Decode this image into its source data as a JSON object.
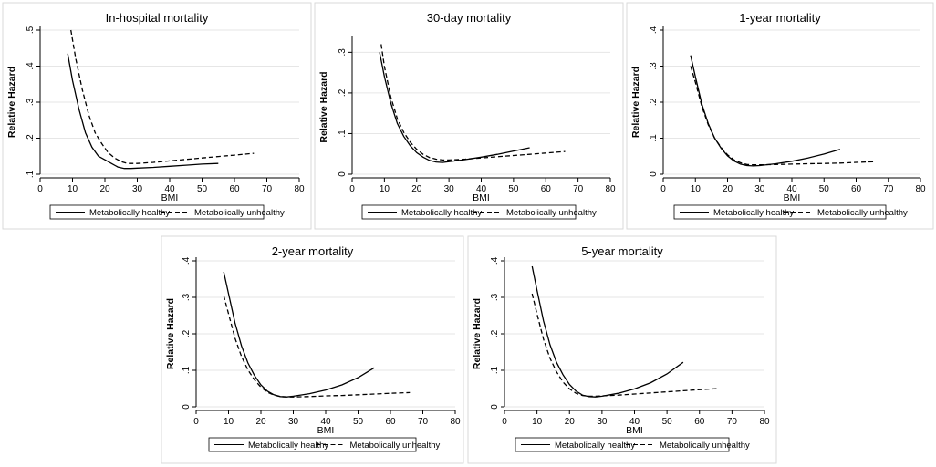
{
  "chart_data": [
    {
      "type": "line",
      "title": "In-hospital mortality",
      "xlabel": "BMI",
      "ylabel": "Relative Hazard",
      "xlim": [
        0,
        80
      ],
      "ylim": [
        0.1,
        0.5
      ],
      "xticks": [
        "0",
        "10",
        "20",
        "30",
        "40",
        "50",
        "60",
        "70",
        "80"
      ],
      "yticks": [
        ".1",
        ".2",
        ".3",
        ".4",
        ".5"
      ],
      "series": [
        {
          "name": "Metabolically healthy",
          "style": "solid",
          "x": [
            8.5,
            10,
            12,
            14,
            16,
            18,
            20,
            22,
            24,
            26,
            28,
            30,
            35,
            40,
            45,
            50,
            55
          ],
          "y": [
            0.435,
            0.36,
            0.28,
            0.215,
            0.175,
            0.15,
            0.14,
            0.13,
            0.12,
            0.116,
            0.116,
            0.117,
            0.119,
            0.122,
            0.125,
            0.128,
            0.13
          ]
        },
        {
          "name": "Metabolically unhealthy",
          "style": "dashed",
          "x": [
            9.5,
            11,
            13,
            15,
            17,
            19,
            21,
            23,
            25,
            27,
            30,
            35,
            40,
            45,
            50,
            55,
            60,
            66
          ],
          "y": [
            0.5,
            0.42,
            0.335,
            0.265,
            0.215,
            0.185,
            0.16,
            0.145,
            0.135,
            0.13,
            0.13,
            0.133,
            0.137,
            0.141,
            0.145,
            0.149,
            0.153,
            0.158
          ]
        }
      ]
    },
    {
      "type": "line",
      "title": "30-day mortality",
      "xlabel": "BMI",
      "ylabel": "Relative Hazard",
      "xlim": [
        0,
        80
      ],
      "ylim": [
        0,
        0.33
      ],
      "xticks": [
        "0",
        "10",
        "20",
        "30",
        "40",
        "50",
        "60",
        "70",
        "80"
      ],
      "yticks": [
        "0",
        ".1",
        ".2",
        ".3"
      ],
      "series": [
        {
          "name": "Metabolically healthy",
          "style": "solid",
          "x": [
            8.5,
            10,
            12,
            14,
            16,
            18,
            20,
            22,
            24,
            26,
            28,
            30,
            35,
            40,
            45,
            50,
            55
          ],
          "y": [
            0.3,
            0.24,
            0.175,
            0.125,
            0.093,
            0.07,
            0.053,
            0.042,
            0.034,
            0.03,
            0.029,
            0.031,
            0.036,
            0.042,
            0.049,
            0.057,
            0.065
          ]
        },
        {
          "name": "Metabolically unhealthy",
          "style": "dashed",
          "x": [
            9,
            10,
            12,
            14,
            16,
            18,
            20,
            22,
            24,
            26,
            28,
            30,
            35,
            40,
            45,
            50,
            55,
            60,
            66
          ],
          "y": [
            0.32,
            0.265,
            0.19,
            0.137,
            0.103,
            0.079,
            0.061,
            0.049,
            0.041,
            0.037,
            0.035,
            0.035,
            0.037,
            0.04,
            0.043,
            0.046,
            0.049,
            0.052,
            0.056
          ]
        }
      ]
    },
    {
      "type": "line",
      "title": "1-year mortality",
      "xlabel": "BMI",
      "ylabel": "Relative Hazard",
      "xlim": [
        0,
        80
      ],
      "ylim": [
        0,
        0.4
      ],
      "xticks": [
        "0",
        "10",
        "20",
        "30",
        "40",
        "50",
        "60",
        "70",
        "80"
      ],
      "yticks": [
        "0",
        ".1",
        ".2",
        ".3",
        ".4"
      ],
      "series": [
        {
          "name": "Metabolically healthy",
          "style": "solid",
          "x": [
            8.5,
            10,
            12,
            14,
            16,
            18,
            20,
            22,
            24,
            26,
            28,
            30,
            35,
            40,
            45,
            50,
            55
          ],
          "y": [
            0.33,
            0.27,
            0.195,
            0.14,
            0.1,
            0.072,
            0.051,
            0.037,
            0.028,
            0.024,
            0.023,
            0.024,
            0.029,
            0.036,
            0.045,
            0.056,
            0.069
          ]
        },
        {
          "name": "Metabolically unhealthy",
          "style": "dashed",
          "x": [
            8.5,
            10,
            12,
            14,
            16,
            18,
            20,
            22,
            24,
            26,
            28,
            30,
            35,
            40,
            45,
            50,
            55,
            60,
            66
          ],
          "y": [
            0.3,
            0.255,
            0.188,
            0.137,
            0.1,
            0.074,
            0.054,
            0.04,
            0.032,
            0.027,
            0.026,
            0.026,
            0.027,
            0.028,
            0.029,
            0.03,
            0.031,
            0.033,
            0.035
          ]
        }
      ]
    },
    {
      "type": "line",
      "title": "2-year mortality",
      "xlabel": "BMI",
      "ylabel": "Relative Hazard",
      "xlim": [
        0,
        80
      ],
      "ylim": [
        0,
        0.4
      ],
      "xticks": [
        "0",
        "10",
        "20",
        "30",
        "40",
        "50",
        "60",
        "70",
        "80"
      ],
      "yticks": [
        "0",
        ".1",
        ".2",
        ".3",
        ".4"
      ],
      "series": [
        {
          "name": "Metabolically healthy",
          "style": "solid",
          "x": [
            8.5,
            10,
            12,
            14,
            16,
            18,
            20,
            22,
            24,
            26,
            28,
            30,
            35,
            40,
            45,
            50,
            55
          ],
          "y": [
            0.37,
            0.31,
            0.23,
            0.167,
            0.12,
            0.086,
            0.06,
            0.043,
            0.033,
            0.028,
            0.027,
            0.029,
            0.036,
            0.046,
            0.06,
            0.08,
            0.107
          ]
        },
        {
          "name": "Metabolically unhealthy",
          "style": "dashed",
          "x": [
            8.5,
            10,
            12,
            14,
            16,
            18,
            20,
            22,
            24,
            26,
            28,
            30,
            35,
            40,
            45,
            50,
            55,
            60,
            66
          ],
          "y": [
            0.305,
            0.255,
            0.188,
            0.138,
            0.101,
            0.074,
            0.054,
            0.04,
            0.032,
            0.028,
            0.027,
            0.027,
            0.028,
            0.03,
            0.031,
            0.033,
            0.035,
            0.037,
            0.039
          ]
        }
      ]
    },
    {
      "type": "line",
      "title": "5-year mortality",
      "xlabel": "BMI",
      "ylabel": "Relative Hazard",
      "xlim": [
        0,
        80
      ],
      "ylim": [
        0,
        0.4
      ],
      "xticks": [
        "0",
        "10",
        "20",
        "30",
        "40",
        "50",
        "60",
        "70",
        "80"
      ],
      "yticks": [
        "0",
        ".1",
        ".2",
        ".3",
        ".4"
      ],
      "series": [
        {
          "name": "Metabolically healthy",
          "style": "solid",
          "x": [
            8.5,
            10,
            12,
            14,
            16,
            18,
            20,
            22,
            24,
            26,
            28,
            30,
            35,
            40,
            45,
            50,
            55
          ],
          "y": [
            0.385,
            0.32,
            0.235,
            0.17,
            0.122,
            0.088,
            0.061,
            0.043,
            0.032,
            0.028,
            0.027,
            0.029,
            0.037,
            0.049,
            0.066,
            0.09,
            0.122
          ]
        },
        {
          "name": "Metabolically unhealthy",
          "style": "dashed",
          "x": [
            8.5,
            10,
            12,
            14,
            16,
            18,
            20,
            22,
            24,
            26,
            28,
            30,
            35,
            40,
            45,
            50,
            55,
            60,
            66
          ],
          "y": [
            0.31,
            0.255,
            0.185,
            0.133,
            0.096,
            0.068,
            0.049,
            0.037,
            0.031,
            0.029,
            0.029,
            0.03,
            0.032,
            0.035,
            0.038,
            0.041,
            0.044,
            0.047,
            0.05
          ]
        }
      ]
    }
  ]
}
